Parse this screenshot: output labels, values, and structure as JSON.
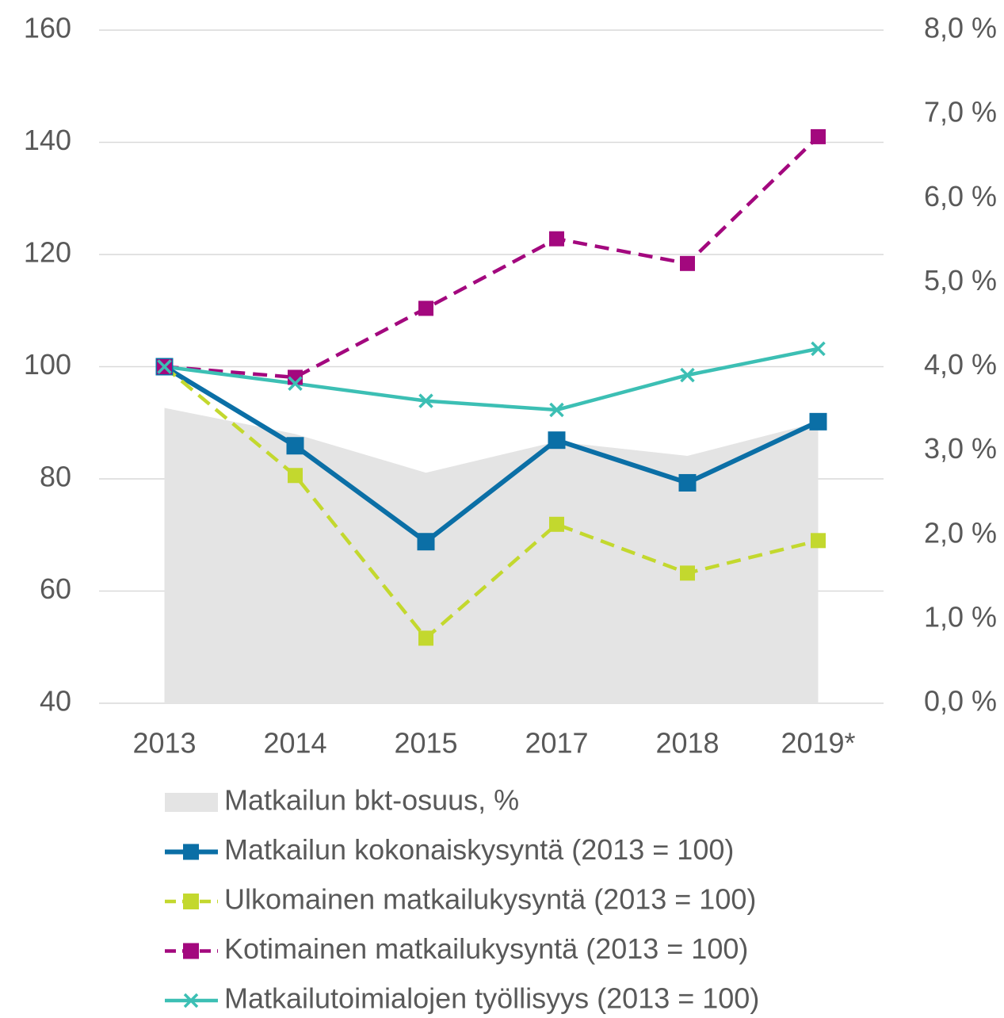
{
  "chart_data": {
    "type": "line",
    "categories": [
      "2013",
      "2014",
      "2015",
      "2017",
      "2018",
      "2019*"
    ],
    "ylim": [
      40,
      160
    ],
    "yticks": [
      40,
      60,
      80,
      100,
      120,
      140,
      160
    ],
    "y2lim": [
      0,
      8
    ],
    "y2ticks": [
      {
        "value": 0,
        "label": "0,0 %"
      },
      {
        "value": 1,
        "label": "1,0 %"
      },
      {
        "value": 2,
        "label": "2,0 %"
      },
      {
        "value": 3,
        "label": "3,0 %"
      },
      {
        "value": 4,
        "label": "4,0 %"
      },
      {
        "value": 5,
        "label": "5,0 %"
      },
      {
        "value": 6,
        "label": "6,0 %"
      },
      {
        "value": 7,
        "label": "7,0 %"
      },
      {
        "value": 8,
        "label": "8,0 %"
      }
    ],
    "grid": true,
    "series": [
      {
        "name": "Matkailun bkt-osuus, %",
        "color": "#e4e4e4",
        "type": "area",
        "axis": "y2",
        "values": [
          3.51,
          3.2,
          2.74,
          3.11,
          2.94,
          3.34
        ]
      },
      {
        "name": "Matkailun kokonaiskysyntä (2013 = 100)",
        "color": "#0b6fa6",
        "marker": "square",
        "dash": false,
        "values": [
          100,
          85.9,
          68.8,
          86.9,
          79.3,
          90.2
        ]
      },
      {
        "name": "Ulkomainen matkailukysyntä (2013 = 100)",
        "color": "#c3d82e",
        "marker": "square",
        "dash": true,
        "values": [
          100,
          80.6,
          51.6,
          71.9,
          63.2,
          69
        ]
      },
      {
        "name": "Kotimainen matkailukysyntä (2013 = 100)",
        "color": "#a3087e",
        "marker": "square",
        "dash": true,
        "values": [
          100,
          98.1,
          110.4,
          122.8,
          118.4,
          141
        ]
      },
      {
        "name": "Matkailutoimialojen työllisyys (2013 = 100)",
        "color": "#3cbfb4",
        "marker": "x",
        "dash": false,
        "values": [
          100,
          97,
          93.9,
          92.3,
          98.5,
          103.2
        ]
      }
    ]
  }
}
